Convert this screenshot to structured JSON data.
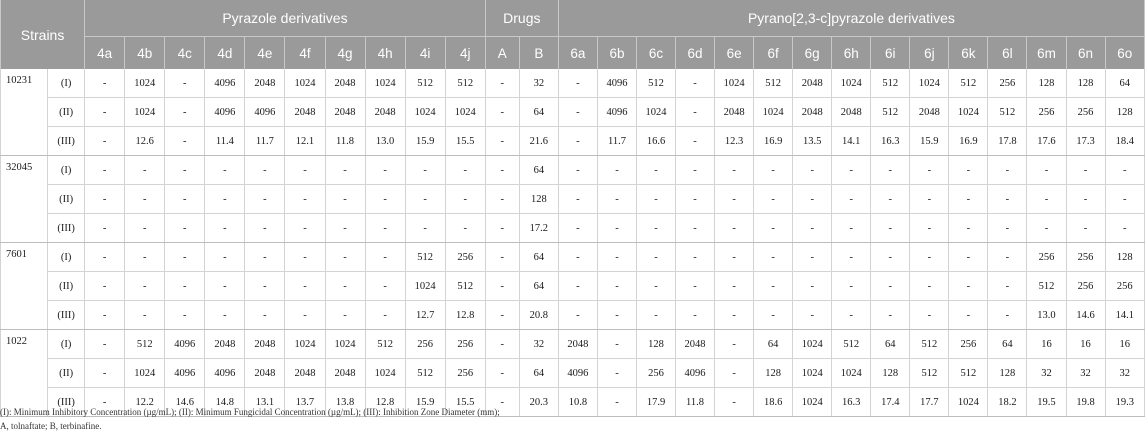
{
  "header": {
    "strains": "Strains",
    "groups": [
      "Pyrazole derivatives",
      "Drugs",
      "Pyrano[2,3-c]pyrazole derivatives"
    ],
    "columns": [
      "4a",
      "4b",
      "4c",
      "4d",
      "4e",
      "4f",
      "4g",
      "4h",
      "4i",
      "4j",
      "A",
      "B",
      "6a",
      "6b",
      "6c",
      "6d",
      "6e",
      "6f",
      "6g",
      "6h",
      "6i",
      "6j",
      "6k",
      "6l",
      "6m",
      "6n",
      "6o"
    ]
  },
  "strains": [
    {
      "name": "10231",
      "rows": [
        {
          "label": "(I)",
          "values": [
            "-",
            "1024",
            "-",
            "4096",
            "2048",
            "1024",
            "2048",
            "1024",
            "512",
            "512",
            "-",
            "32",
            "-",
            "4096",
            "512",
            "-",
            "1024",
            "512",
            "2048",
            "1024",
            "512",
            "1024",
            "512",
            "256",
            "128",
            "128",
            "64"
          ]
        },
        {
          "label": "(II)",
          "values": [
            "-",
            "1024",
            "-",
            "4096",
            "4096",
            "2048",
            "2048",
            "2048",
            "1024",
            "1024",
            "-",
            "64",
            "-",
            "4096",
            "1024",
            "-",
            "2048",
            "1024",
            "2048",
            "2048",
            "512",
            "2048",
            "1024",
            "512",
            "256",
            "256",
            "128"
          ]
        },
        {
          "label": "(III)",
          "values": [
            "-",
            "12.6",
            "-",
            "11.4",
            "11.7",
            "12.1",
            "11.8",
            "13.0",
            "15.9",
            "15.5",
            "-",
            "21.6",
            "-",
            "11.7",
            "16.6",
            "-",
            "12.3",
            "16.9",
            "13.5",
            "14.1",
            "16.3",
            "15.9",
            "16.9",
            "17.8",
            "17.6",
            "17.3",
            "18.4"
          ]
        }
      ]
    },
    {
      "name": "32045",
      "rows": [
        {
          "label": "(I)",
          "values": [
            "-",
            "-",
            "-",
            "-",
            "-",
            "-",
            "-",
            "-",
            "-",
            "-",
            "-",
            "64",
            "-",
            "-",
            "-",
            "-",
            "-",
            "-",
            "-",
            "-",
            "-",
            "-",
            "-",
            "-",
            "-",
            "-",
            "-"
          ]
        },
        {
          "label": "(II)",
          "values": [
            "-",
            "-",
            "-",
            "-",
            "-",
            "-",
            "-",
            "-",
            "-",
            "-",
            "-",
            "128",
            "-",
            "-",
            "-",
            "-",
            "-",
            "-",
            "-",
            "-",
            "-",
            "-",
            "-",
            "-",
            "-",
            "-",
            "-"
          ]
        },
        {
          "label": "(III)",
          "values": [
            "-",
            "-",
            "-",
            "-",
            "-",
            "-",
            "-",
            "-",
            "-",
            "-",
            "-",
            "17.2",
            "-",
            "-",
            "-",
            "-",
            "-",
            "-",
            "-",
            "-",
            "-",
            "-",
            "-",
            "-",
            "-",
            "-",
            "-"
          ]
        }
      ]
    },
    {
      "name": "7601",
      "rows": [
        {
          "label": "(I)",
          "values": [
            "-",
            "-",
            "-",
            "-",
            "-",
            "-",
            "-",
            "-",
            "512",
            "256",
            "-",
            "64",
            "-",
            "-",
            "-",
            "-",
            "-",
            "-",
            "-",
            "-",
            "-",
            "-",
            "-",
            "-",
            "256",
            "256",
            "128"
          ]
        },
        {
          "label": "(II)",
          "values": [
            "-",
            "-",
            "-",
            "-",
            "-",
            "-",
            "-",
            "-",
            "1024",
            "512",
            "-",
            "64",
            "-",
            "-",
            "-",
            "-",
            "-",
            "-",
            "-",
            "-",
            "-",
            "-",
            "-",
            "-",
            "512",
            "256",
            "256"
          ]
        },
        {
          "label": "(III)",
          "values": [
            "-",
            "-",
            "-",
            "-",
            "-",
            "-",
            "-",
            "-",
            "12.7",
            "12.8",
            "-",
            "20.8",
            "-",
            "-",
            "-",
            "-",
            "-",
            "-",
            "-",
            "-",
            "-",
            "-",
            "-",
            "-",
            "13.0",
            "14.6",
            "14.1"
          ]
        }
      ]
    },
    {
      "name": "1022",
      "rows": [
        {
          "label": "(I)",
          "values": [
            "-",
            "512",
            "4096",
            "2048",
            "2048",
            "1024",
            "1024",
            "512",
            "256",
            "256",
            "-",
            "32",
            "2048",
            "-",
            "128",
            "2048",
            "-",
            "64",
            "1024",
            "512",
            "64",
            "512",
            "256",
            "64",
            "16",
            "16",
            "16"
          ]
        },
        {
          "label": "(II)",
          "values": [
            "-",
            "1024",
            "4096",
            "4096",
            "2048",
            "2048",
            "2048",
            "1024",
            "512",
            "256",
            "-",
            "64",
            "4096",
            "-",
            "256",
            "4096",
            "-",
            "128",
            "1024",
            "1024",
            "128",
            "512",
            "512",
            "128",
            "32",
            "32",
            "32"
          ]
        },
        {
          "label": "(III)",
          "values": [
            "-",
            "12.2",
            "14.6",
            "14.8",
            "13.1",
            "13.7",
            "13.8",
            "12.8",
            "15.9",
            "15.5",
            "-",
            "20.3",
            "10.8",
            "-",
            "17.9",
            "11.8",
            "-",
            "18.6",
            "1024",
            "16.3",
            "17.4",
            "17.7",
            "1024",
            "18.2",
            "19.5",
            "19.8",
            "19.3"
          ]
        }
      ]
    }
  ],
  "footnotes": [
    "(I): Minimum Inhibitory Concentration (µg/mL); (II): Minimum Fungicidal Concentration (µg/mL); (III): Inhibition Zone Diameter (mm);",
    "A, tolnaftate; B, terbinafine."
  ]
}
